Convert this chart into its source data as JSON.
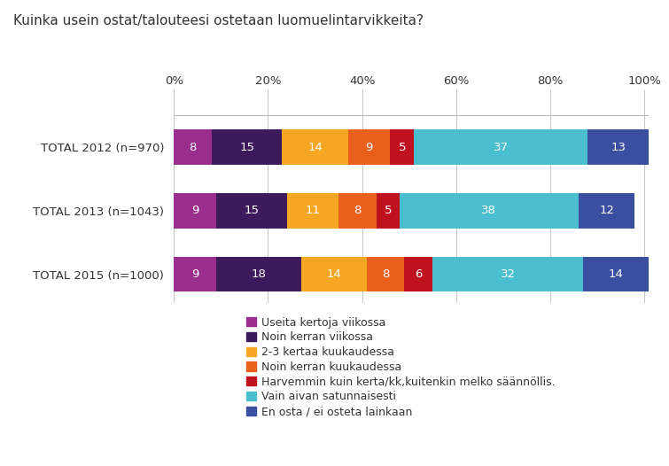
{
  "title": "Kuinka usein ostat/talouteesi ostetaan luomuelintarvikkeita?",
  "rows": [
    {
      "label": "TOTAL 2012 (n=970)",
      "values": [
        8,
        15,
        14,
        9,
        5,
        37,
        13
      ]
    },
    {
      "label": "TOTAL 2013 (n=1043)",
      "values": [
        9,
        15,
        11,
        8,
        5,
        38,
        12
      ]
    },
    {
      "label": "TOTAL 2015 (n=1000)",
      "values": [
        9,
        18,
        14,
        8,
        6,
        32,
        14
      ]
    }
  ],
  "colors": [
    "#9B2D8E",
    "#3D1A5C",
    "#F5A623",
    "#E8601C",
    "#C0111F",
    "#4BBFCF",
    "#3A4FA0"
  ],
  "legend_labels": [
    "Useita kertoja viikossa",
    "Noin kerran viikossa",
    "2-3 kertaa kuukaudessa",
    "Noin kerran kuukaudessa",
    "Harvemmin kuin kerta/kk,kuitenkin melko säännöllis.",
    "Vain aivan satunnaisesti",
    "En osta / ei osteta lainkaan"
  ],
  "title_fontsize": 11,
  "label_fontsize": 9.5,
  "bar_fontsize": 9.5,
  "legend_fontsize": 9,
  "bar_height": 0.55,
  "background_color": "#ffffff",
  "text_color": "#333333",
  "axis_color": "#bbbbbb",
  "xticks": [
    0,
    20,
    40,
    60,
    80,
    100
  ],
  "xlim": [
    0,
    101
  ]
}
